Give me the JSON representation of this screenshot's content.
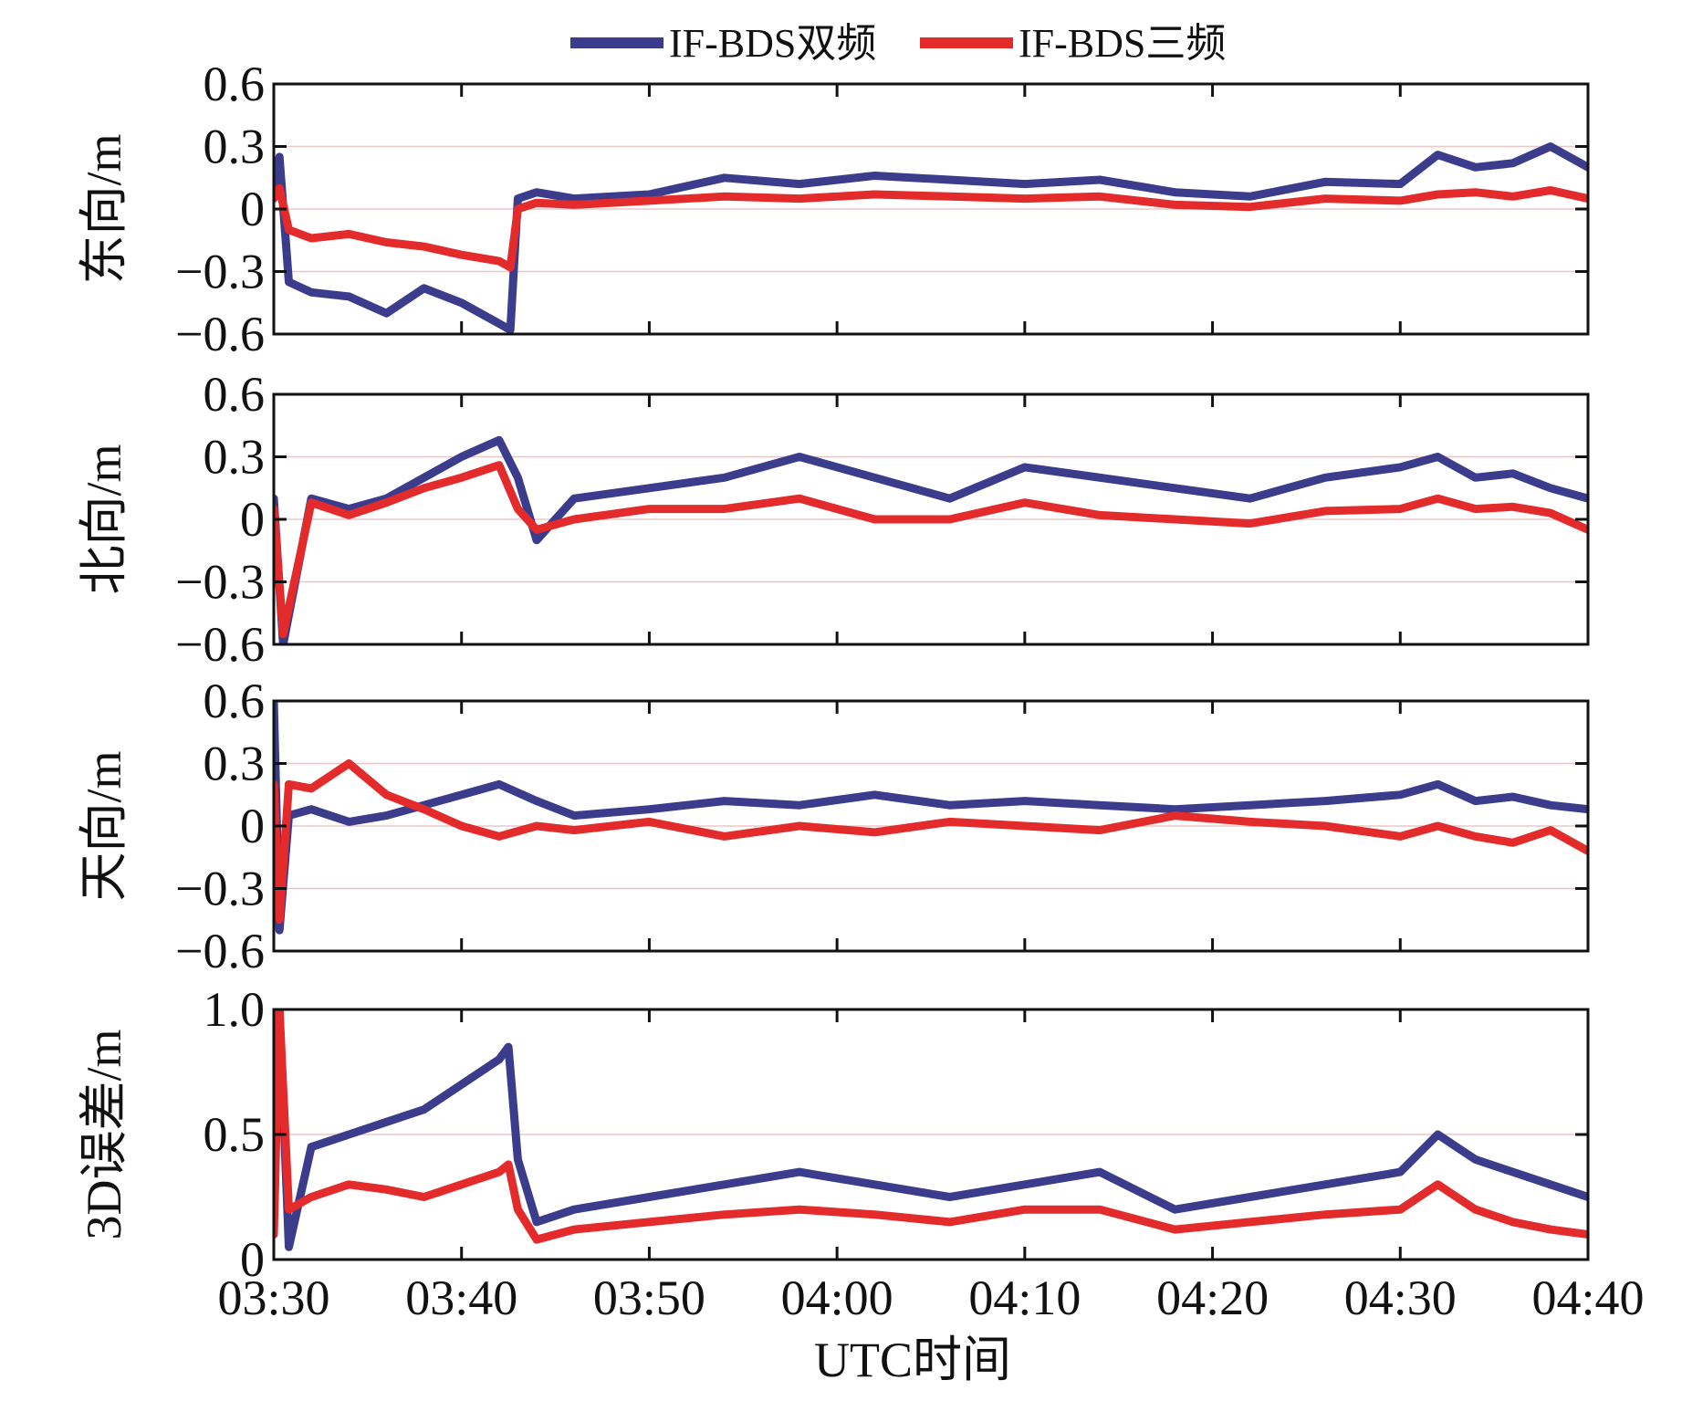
{
  "figure": {
    "xlabel": "UTC时间",
    "legend": [
      {
        "label": "IF-BDS双频",
        "color": "#3c3c8c"
      },
      {
        "label": "IF-BDS三频",
        "color": "#e32b2b"
      }
    ],
    "x_ticks": [
      "03:30",
      "03:40",
      "03:50",
      "04:00",
      "04:10",
      "04:20",
      "04:30",
      "04:40"
    ]
  },
  "chart_data": [
    {
      "type": "line",
      "ylabel": "东向/m",
      "x_range_minutes": [
        0,
        70
      ],
      "ylim": [
        -0.6,
        0.6
      ],
      "yticks": [
        -0.6,
        -0.3,
        0,
        0.3,
        0.6
      ],
      "ytick_labels": [
        "−0.6",
        "−0.3",
        "0",
        "0.3",
        "0.6"
      ],
      "series": [
        {
          "name": "IF-BDS双频",
          "color": "#3c3c8c",
          "x": [
            0,
            0.3,
            0.8,
            2,
            4,
            6,
            8,
            10,
            12,
            12.6,
            13,
            14,
            16,
            20,
            24,
            28,
            32,
            36,
            40,
            44,
            48,
            52,
            56,
            60,
            62,
            64,
            66,
            68,
            70
          ],
          "y": [
            0.1,
            0.25,
            -0.35,
            -0.4,
            -0.42,
            -0.5,
            -0.38,
            -0.45,
            -0.55,
            -0.58,
            0.05,
            0.08,
            0.05,
            0.07,
            0.15,
            0.12,
            0.16,
            0.14,
            0.12,
            0.14,
            0.08,
            0.06,
            0.13,
            0.12,
            0.26,
            0.2,
            0.22,
            0.3,
            0.2
          ]
        },
        {
          "name": "IF-BDS三频",
          "color": "#e32b2b",
          "x": [
            0,
            0.3,
            0.8,
            2,
            4,
            6,
            8,
            10,
            12,
            12.6,
            13,
            14,
            16,
            20,
            24,
            28,
            32,
            36,
            40,
            44,
            48,
            52,
            56,
            60,
            62,
            64,
            66,
            68,
            70
          ],
          "y": [
            0.05,
            0.1,
            -0.1,
            -0.14,
            -0.12,
            -0.16,
            -0.18,
            -0.22,
            -0.25,
            -0.28,
            0.0,
            0.03,
            0.02,
            0.04,
            0.06,
            0.05,
            0.07,
            0.06,
            0.05,
            0.06,
            0.02,
            0.01,
            0.05,
            0.04,
            0.07,
            0.08,
            0.06,
            0.09,
            0.05
          ]
        }
      ]
    },
    {
      "type": "line",
      "ylabel": "北向/m",
      "x_range_minutes": [
        0,
        70
      ],
      "ylim": [
        -0.6,
        0.6
      ],
      "yticks": [
        -0.6,
        -0.3,
        0,
        0.3,
        0.6
      ],
      "ytick_labels": [
        "−0.6",
        "−0.3",
        "0",
        "0.3",
        "0.6"
      ],
      "series": [
        {
          "name": "IF-BDS双频",
          "color": "#3c3c8c",
          "x": [
            0,
            0.5,
            2,
            4,
            6,
            8,
            10,
            12,
            13,
            14,
            16,
            20,
            24,
            28,
            32,
            36,
            40,
            44,
            48,
            52,
            56,
            60,
            62,
            64,
            66,
            68,
            70
          ],
          "y": [
            0.1,
            -0.6,
            0.1,
            0.05,
            0.1,
            0.2,
            0.3,
            0.38,
            0.2,
            -0.1,
            0.1,
            0.15,
            0.2,
            0.3,
            0.2,
            0.1,
            0.25,
            0.2,
            0.15,
            0.1,
            0.2,
            0.25,
            0.3,
            0.2,
            0.22,
            0.15,
            0.1
          ]
        },
        {
          "name": "IF-BDS三频",
          "color": "#e32b2b",
          "x": [
            0,
            0.5,
            2,
            4,
            6,
            8,
            10,
            12,
            13,
            14,
            16,
            20,
            24,
            28,
            32,
            36,
            40,
            44,
            48,
            52,
            56,
            60,
            62,
            64,
            66,
            68,
            70
          ],
          "y": [
            0.05,
            -0.55,
            0.08,
            0.02,
            0.08,
            0.15,
            0.2,
            0.26,
            0.05,
            -0.05,
            0.0,
            0.05,
            0.05,
            0.1,
            0.0,
            0.0,
            0.08,
            0.02,
            0.0,
            -0.02,
            0.04,
            0.05,
            0.1,
            0.05,
            0.06,
            0.03,
            -0.05
          ]
        }
      ]
    },
    {
      "type": "line",
      "ylabel": "天向/m",
      "x_range_minutes": [
        0,
        70
      ],
      "ylim": [
        -0.6,
        0.6
      ],
      "yticks": [
        -0.6,
        -0.3,
        0,
        0.3,
        0.6
      ],
      "ytick_labels": [
        "−0.6",
        "−0.3",
        "0",
        "0.3",
        "0.6"
      ],
      "series": [
        {
          "name": "IF-BDS双频",
          "color": "#3c3c8c",
          "x": [
            0,
            0.3,
            0.8,
            2,
            4,
            6,
            8,
            10,
            12,
            14,
            16,
            20,
            24,
            28,
            32,
            36,
            40,
            44,
            48,
            52,
            56,
            60,
            62,
            64,
            66,
            68,
            70
          ],
          "y": [
            0.6,
            -0.5,
            0.05,
            0.08,
            0.02,
            0.05,
            0.1,
            0.15,
            0.2,
            0.12,
            0.05,
            0.08,
            0.12,
            0.1,
            0.15,
            0.1,
            0.12,
            0.1,
            0.08,
            0.1,
            0.12,
            0.15,
            0.2,
            0.12,
            0.14,
            0.1,
            0.08
          ]
        },
        {
          "name": "IF-BDS三频",
          "color": "#e32b2b",
          "x": [
            0,
            0.3,
            0.8,
            2,
            4,
            6,
            8,
            10,
            12,
            14,
            16,
            20,
            24,
            28,
            32,
            36,
            40,
            44,
            48,
            52,
            56,
            60,
            62,
            64,
            66,
            68,
            70
          ],
          "y": [
            0.2,
            -0.45,
            0.2,
            0.18,
            0.3,
            0.15,
            0.08,
            0.0,
            -0.05,
            0.0,
            -0.02,
            0.02,
            -0.05,
            0.0,
            -0.03,
            0.02,
            0.0,
            -0.02,
            0.05,
            0.02,
            0.0,
            -0.05,
            0.0,
            -0.05,
            -0.08,
            -0.02,
            -0.12
          ]
        }
      ]
    },
    {
      "type": "line",
      "ylabel": "3D误差/m",
      "x_range_minutes": [
        0,
        70
      ],
      "ylim": [
        0,
        1.0
      ],
      "yticks": [
        0,
        0.5,
        1.0
      ],
      "ytick_labels": [
        "0",
        "0.5",
        "1.0"
      ],
      "series": [
        {
          "name": "IF-BDS双频",
          "color": "#3c3c8c",
          "x": [
            0,
            0.3,
            0.8,
            2,
            4,
            6,
            8,
            10,
            12,
            12.5,
            13,
            14,
            16,
            20,
            24,
            28,
            32,
            36,
            40,
            44,
            48,
            52,
            56,
            60,
            62,
            64,
            66,
            68,
            70
          ],
          "y": [
            0.2,
            1.0,
            0.05,
            0.45,
            0.5,
            0.55,
            0.6,
            0.7,
            0.8,
            0.85,
            0.4,
            0.15,
            0.2,
            0.25,
            0.3,
            0.35,
            0.3,
            0.25,
            0.3,
            0.35,
            0.2,
            0.25,
            0.3,
            0.35,
            0.5,
            0.4,
            0.35,
            0.3,
            0.25
          ]
        },
        {
          "name": "IF-BDS三频",
          "color": "#e32b2b",
          "x": [
            0,
            0.3,
            0.8,
            2,
            4,
            6,
            8,
            10,
            12,
            12.5,
            13,
            14,
            16,
            20,
            24,
            28,
            32,
            36,
            40,
            44,
            48,
            52,
            56,
            60,
            62,
            64,
            66,
            68,
            70
          ],
          "y": [
            0.1,
            1.0,
            0.2,
            0.25,
            0.3,
            0.28,
            0.25,
            0.3,
            0.35,
            0.38,
            0.2,
            0.08,
            0.12,
            0.15,
            0.18,
            0.2,
            0.18,
            0.15,
            0.2,
            0.2,
            0.12,
            0.15,
            0.18,
            0.2,
            0.3,
            0.2,
            0.15,
            0.12,
            0.1
          ]
        }
      ]
    }
  ]
}
